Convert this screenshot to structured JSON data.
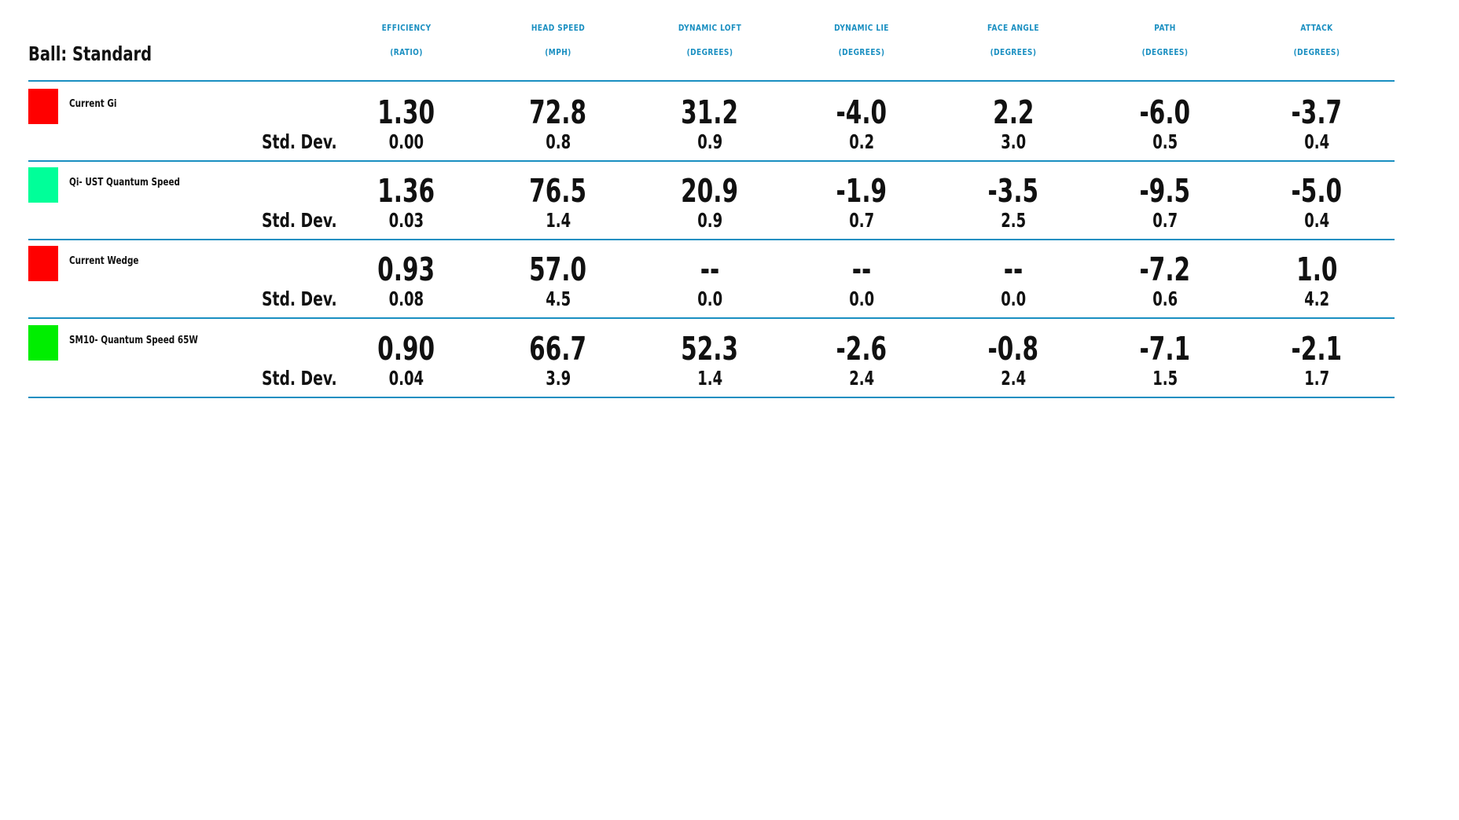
{
  "ball_label": "Ball: Standard",
  "std_label": "Std. Dev.",
  "columns": [
    {
      "name": "EFFICIENCY",
      "unit": "(RATIO)"
    },
    {
      "name": "HEAD SPEED",
      "unit": "(MPH)"
    },
    {
      "name": "DYNAMIC LOFT",
      "unit": "(DEGREES)"
    },
    {
      "name": "DYNAMIC LIE",
      "unit": "(DEGREES)"
    },
    {
      "name": "FACE ANGLE",
      "unit": "(DEGREES)"
    },
    {
      "name": "PATH",
      "unit": "(DEGREES)"
    },
    {
      "name": "ATTACK",
      "unit": "(DEGREES)"
    }
  ],
  "rows": [
    {
      "name": "Current Gi",
      "color": "#ff0000",
      "values": [
        "1.30",
        "72.8",
        "31.2",
        "-4.0",
        "2.2",
        "-6.0",
        "-3.7"
      ],
      "std_dev": [
        "0.00",
        "0.8",
        "0.9",
        "0.2",
        "3.0",
        "0.5",
        "0.4"
      ]
    },
    {
      "name": "Qi- UST Quantum Speed",
      "color": "#00ff99",
      "values": [
        "1.36",
        "76.5",
        "20.9",
        "-1.9",
        "-3.5",
        "-9.5",
        "-5.0"
      ],
      "std_dev": [
        "0.03",
        "1.4",
        "0.9",
        "0.7",
        "2.5",
        "0.7",
        "0.4"
      ]
    },
    {
      "name": "Current Wedge",
      "color": "#ff0000",
      "values": [
        "0.93",
        "57.0",
        "--",
        "--",
        "--",
        "-7.2",
        "1.0"
      ],
      "std_dev": [
        "0.08",
        "4.5",
        "0.0",
        "0.0",
        "0.0",
        "0.6",
        "4.2"
      ]
    },
    {
      "name": "SM10- Quantum Speed 65W",
      "color": "#00ee00",
      "values": [
        "0.90",
        "66.7",
        "52.3",
        "-2.6",
        "-0.8",
        "-7.1",
        "-2.1"
      ],
      "std_dev": [
        "0.04",
        "3.9",
        "1.4",
        "2.4",
        "2.4",
        "1.5",
        "1.7"
      ]
    }
  ],
  "accent_color": "#1a8fc1"
}
